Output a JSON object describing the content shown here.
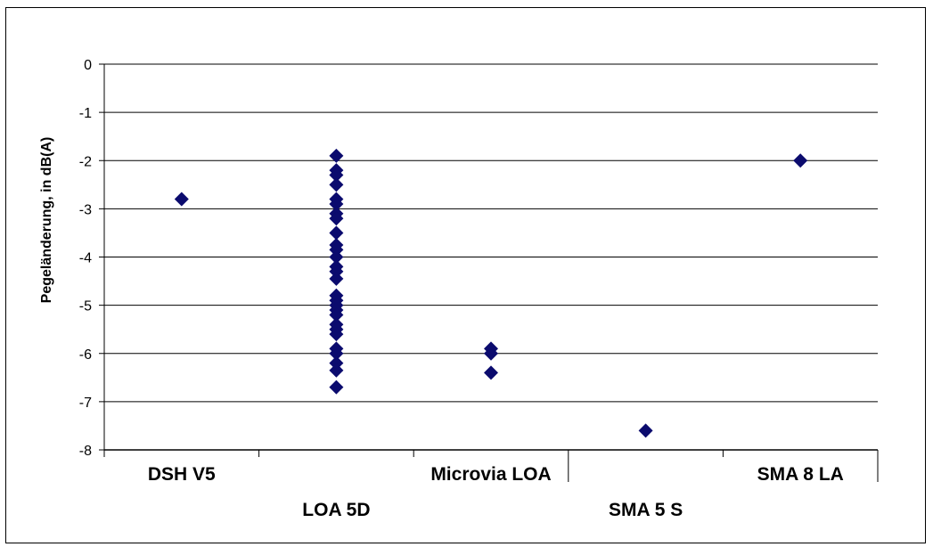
{
  "chart_data": {
    "type": "scatter",
    "title": "",
    "xlabel": "",
    "ylabel": "Pegeländerung, in dB(A)",
    "ylim": [
      -8,
      0
    ],
    "yticks": [
      0,
      -1,
      -2,
      -3,
      -4,
      -5,
      -6,
      -7,
      -8
    ],
    "grid": true,
    "legend": "none",
    "marker": "diamond",
    "colors": {
      "marker": "#0b0b6e",
      "grid": "#000000",
      "axis": "#000000"
    },
    "categories": [
      "DSH V5",
      "LOA 5D",
      "Microvia LOA",
      "SMA 5 S",
      "SMA 8 LA"
    ],
    "points": [
      {
        "category": "DSH V5",
        "values": [
          -2.8
        ]
      },
      {
        "category": "LOA 5D",
        "values": [
          -1.9,
          -2.2,
          -2.3,
          -2.5,
          -2.8,
          -2.9,
          -3.1,
          -3.2,
          -3.5,
          -3.75,
          -3.85,
          -4.0,
          -4.2,
          -4.3,
          -4.45,
          -4.8,
          -4.9,
          -5.0,
          -5.1,
          -5.2,
          -5.4,
          -5.5,
          -5.6,
          -5.9,
          -6.0,
          -6.2,
          -6.35,
          -6.7
        ]
      },
      {
        "category": "Microvia LOA",
        "values": [
          -5.9,
          -6.0,
          -6.4
        ]
      },
      {
        "category": "SMA 5 S",
        "values": [
          -7.6
        ]
      },
      {
        "category": "SMA 8 LA",
        "values": [
          -2.0
        ]
      }
    ]
  }
}
